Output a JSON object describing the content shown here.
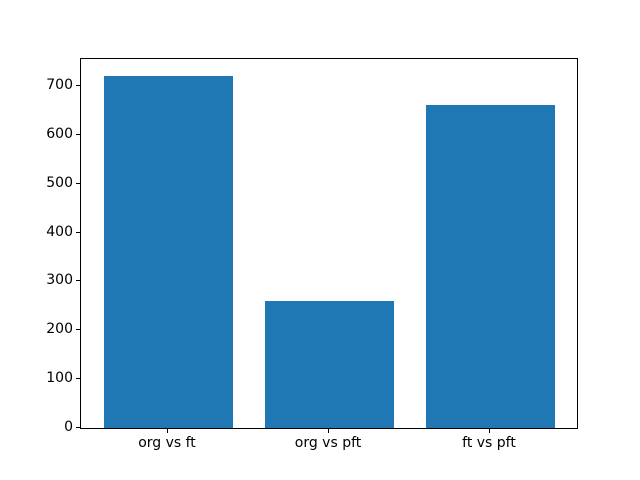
{
  "chart_data": {
    "type": "bar",
    "title": "",
    "xlabel": "",
    "ylabel": "",
    "categories": [
      "org vs ft",
      "org vs pft",
      "ft vs pft"
    ],
    "values": [
      720,
      260,
      660
    ],
    "yticks": [
      0,
      100,
      200,
      300,
      400,
      500,
      600,
      700
    ],
    "ylim": [
      0,
      755
    ],
    "bar_color": "#1f77b4",
    "axis_color": "#000000",
    "background_color": "#ffffff",
    "grid": false,
    "legend": null
  }
}
